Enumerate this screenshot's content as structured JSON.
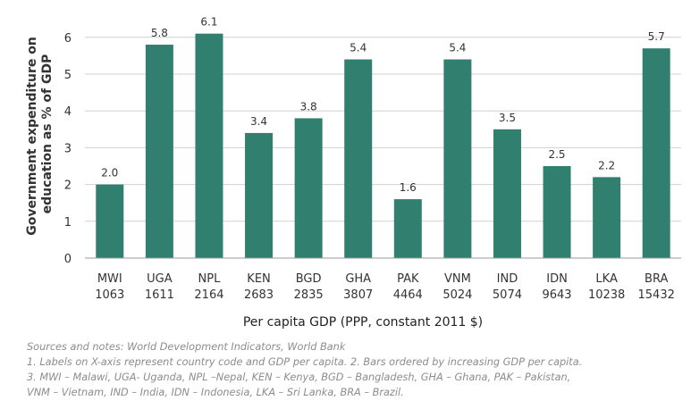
{
  "chart_data": {
    "type": "bar",
    "title": "",
    "ylabel_lines": [
      "Government expenditure on",
      "education as % of GDP"
    ],
    "xlabel": "Per capita GDP  (PPP, constant 2011 $)",
    "ylim": [
      0,
      6.5
    ],
    "yticks": [
      0,
      1,
      2,
      3,
      4,
      5,
      6
    ],
    "grid": true,
    "colors": {
      "bar": "#317f6f",
      "grid": "#d0d0d0",
      "axis": "#999999"
    },
    "categories": [
      {
        "code": "MWI",
        "gdp": "1063"
      },
      {
        "code": "UGA",
        "gdp": "1611"
      },
      {
        "code": "NPL",
        "gdp": "2164"
      },
      {
        "code": "KEN",
        "gdp": "2683"
      },
      {
        "code": "BGD",
        "gdp": "2835"
      },
      {
        "code": "GHA",
        "gdp": "3807"
      },
      {
        "code": "PAK",
        "gdp": "4464"
      },
      {
        "code": "VNM",
        "gdp": "5024"
      },
      {
        "code": "IND",
        "gdp": "5074"
      },
      {
        "code": "IDN",
        "gdp": "9643"
      },
      {
        "code": "LKA",
        "gdp": "10238"
      },
      {
        "code": "BRA",
        "gdp": "15432"
      }
    ],
    "values": [
      2.0,
      5.8,
      6.1,
      3.4,
      3.8,
      5.4,
      1.6,
      5.4,
      3.5,
      2.5,
      2.2,
      5.7
    ],
    "data_labels": [
      "2.0",
      "5.8",
      "6.1",
      "3.4",
      "3.8",
      "5.4",
      "1.6",
      "5.4",
      "3.5",
      "2.5",
      "2.2",
      "5.7"
    ]
  },
  "notes": {
    "source": "Sources and notes: World Development Indicators, World Bank",
    "line1": "1. Labels on X-axis represent country code and GDP per capita.  2. Bars ordered by increasing GDP per capita.",
    "line2": "3. MWI – Malawi, UGA- Uganda, NPL –Nepal, KEN – Kenya, BGD – Bangladesh, GHA – Ghana, PAK – Pakistan,",
    "line3": "VNM – Vietnam, IND – India, IDN – Indonesia, LKA – Sri Lanka, BRA – Brazil."
  }
}
